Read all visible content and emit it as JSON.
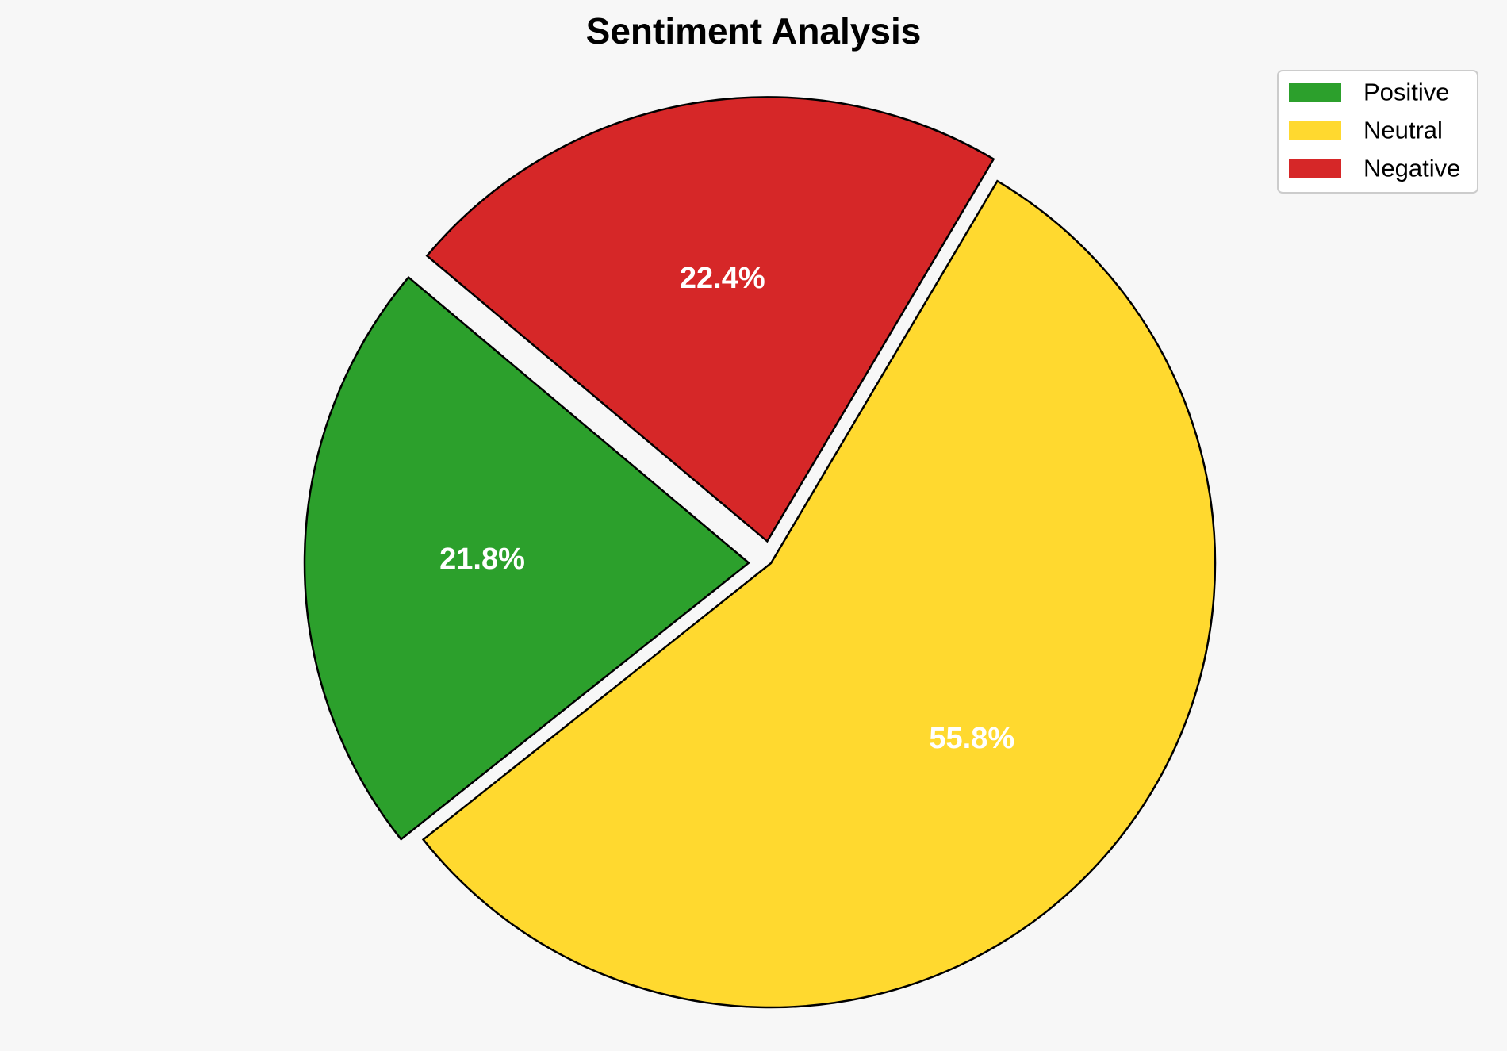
{
  "chart_data": {
    "type": "pie",
    "title": "Sentiment Analysis",
    "slices": [
      {
        "label": "Positive",
        "value": 21.8,
        "display": "21.8%",
        "color": "#2ca02c",
        "exploded": true
      },
      {
        "label": "Neutral",
        "value": 55.8,
        "display": "55.8%",
        "color": "#ffd92f",
        "exploded": false
      },
      {
        "label": "Negative",
        "value": 22.4,
        "display": "22.4%",
        "color": "#d62728",
        "exploded": true
      }
    ],
    "start_angle_deg": 140,
    "direction": "counterclockwise",
    "legend_placement": "top-right",
    "edge_color": "#000000",
    "background_color": "#f7f7f7"
  }
}
